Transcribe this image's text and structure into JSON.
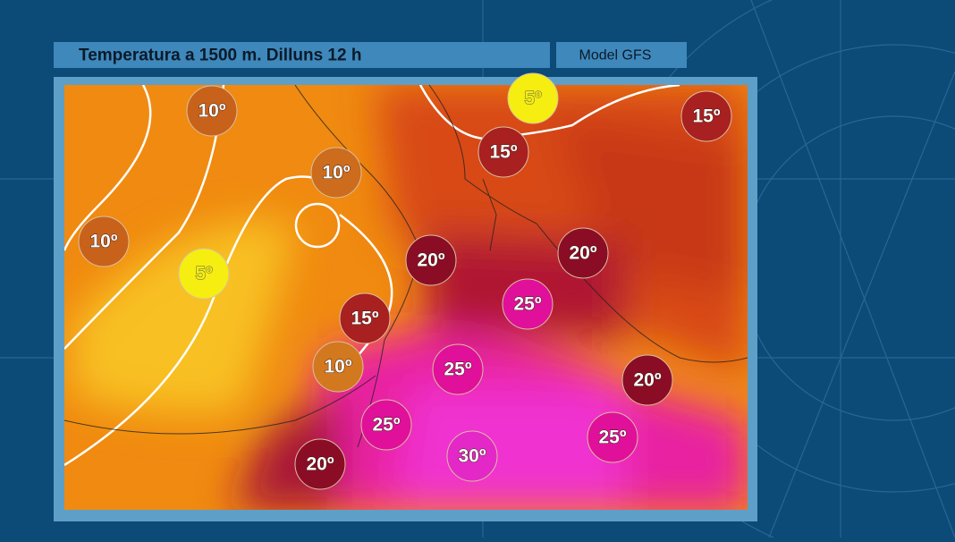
{
  "header": {
    "title": "Temperatura a 1500 m.  Dilluns 12 h",
    "model": "Model GFS"
  },
  "labels": [
    {
      "text": "10º"
    },
    {
      "text": "5º"
    },
    {
      "text": "15º"
    },
    {
      "text": "15º"
    },
    {
      "text": "10º"
    },
    {
      "text": "10º"
    },
    {
      "text": "5º"
    },
    {
      "text": "20º"
    },
    {
      "text": "20º"
    },
    {
      "text": "25º"
    },
    {
      "text": "15º"
    },
    {
      "text": "10º"
    },
    {
      "text": "25º"
    },
    {
      "text": "20º"
    },
    {
      "text": "25º"
    },
    {
      "text": "25º"
    },
    {
      "text": "30º"
    },
    {
      "text": "20º"
    }
  ]
}
